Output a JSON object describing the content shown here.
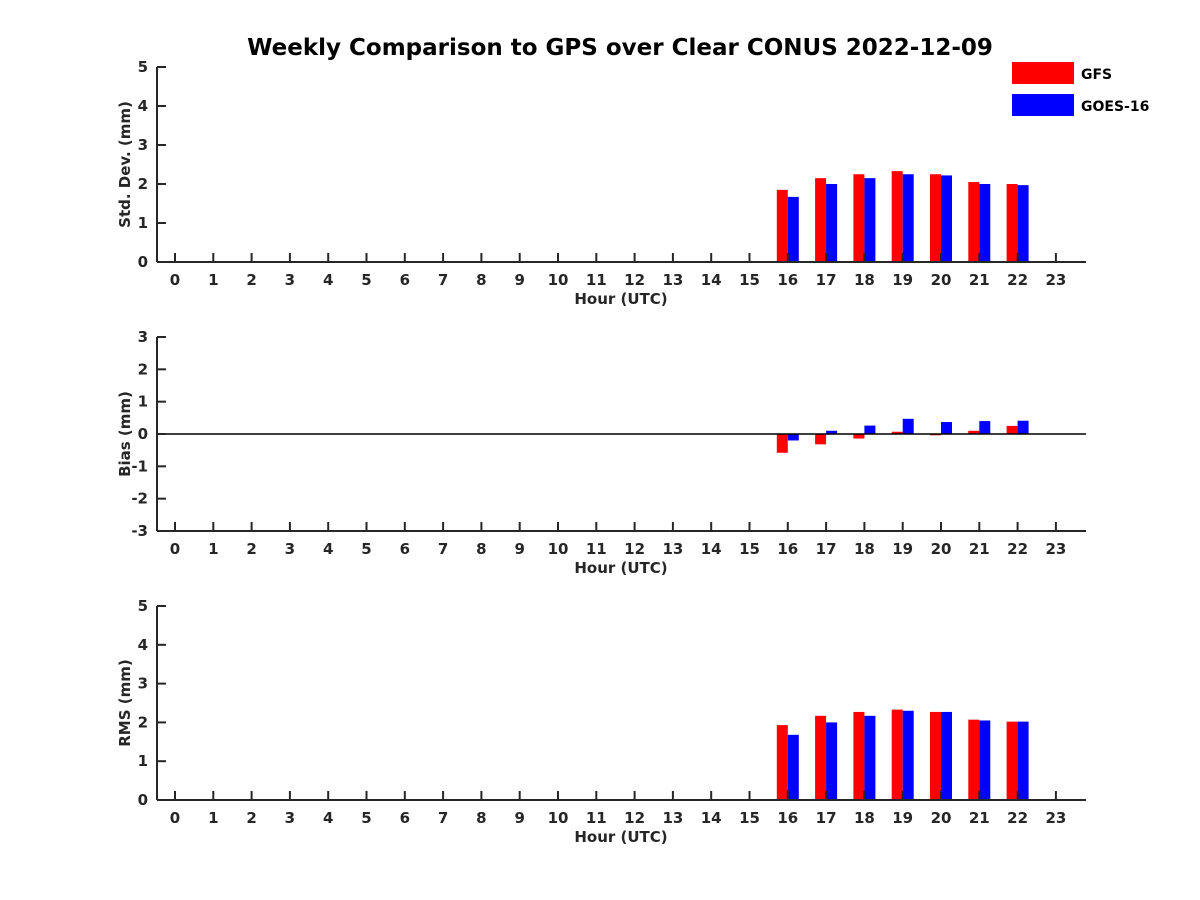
{
  "chart_data": [
    {
      "type": "bar",
      "title": "Weekly Comparison to GPS over Clear CONUS 2022-12-09",
      "xlabel": "Hour (UTC)",
      "ylabel": "Std. Dev. (mm)",
      "categories": [
        "0",
        "1",
        "2",
        "3",
        "4",
        "5",
        "6",
        "7",
        "8",
        "9",
        "10",
        "11",
        "12",
        "13",
        "14",
        "15",
        "16",
        "17",
        "18",
        "19",
        "20",
        "21",
        "22",
        "23"
      ],
      "ylim": [
        0,
        5
      ],
      "yticks": [
        0,
        1,
        2,
        3,
        4,
        5
      ],
      "series": [
        {
          "name": "GFS",
          "color": "#ff0000",
          "values": [
            null,
            null,
            null,
            null,
            null,
            null,
            null,
            null,
            null,
            null,
            null,
            null,
            null,
            null,
            null,
            null,
            1.85,
            2.15,
            2.25,
            2.33,
            2.25,
            2.05,
            2.0,
            null
          ]
        },
        {
          "name": "GOES-16",
          "color": "#0000ff",
          "values": [
            null,
            null,
            null,
            null,
            null,
            null,
            null,
            null,
            null,
            null,
            null,
            null,
            null,
            null,
            null,
            null,
            1.67,
            2.0,
            2.15,
            2.25,
            2.22,
            2.0,
            1.97,
            null
          ]
        }
      ],
      "legend": "top-right",
      "grid": false
    },
    {
      "type": "bar",
      "xlabel": "Hour (UTC)",
      "ylabel": "Bias (mm)",
      "categories": [
        "0",
        "1",
        "2",
        "3",
        "4",
        "5",
        "6",
        "7",
        "8",
        "9",
        "10",
        "11",
        "12",
        "13",
        "14",
        "15",
        "16",
        "17",
        "18",
        "19",
        "20",
        "21",
        "22",
        "23"
      ],
      "ylim": [
        -3,
        3
      ],
      "yticks": [
        -3,
        -2,
        -1,
        0,
        1,
        2,
        3
      ],
      "zero_line": true,
      "series": [
        {
          "name": "GFS",
          "color": "#ff0000",
          "values": [
            null,
            null,
            null,
            null,
            null,
            null,
            null,
            null,
            null,
            null,
            null,
            null,
            null,
            null,
            null,
            null,
            -0.58,
            -0.32,
            -0.14,
            0.07,
            -0.04,
            0.1,
            0.25,
            null
          ]
        },
        {
          "name": "GOES-16",
          "color": "#0000ff",
          "values": [
            null,
            null,
            null,
            null,
            null,
            null,
            null,
            null,
            null,
            null,
            null,
            null,
            null,
            null,
            null,
            null,
            -0.2,
            0.1,
            0.26,
            0.47,
            0.37,
            0.4,
            0.41,
            null
          ]
        }
      ],
      "grid": false
    },
    {
      "type": "bar",
      "xlabel": "Hour (UTC)",
      "ylabel": "RMS (mm)",
      "categories": [
        "0",
        "1",
        "2",
        "3",
        "4",
        "5",
        "6",
        "7",
        "8",
        "9",
        "10",
        "11",
        "12",
        "13",
        "14",
        "15",
        "16",
        "17",
        "18",
        "19",
        "20",
        "21",
        "22",
        "23"
      ],
      "ylim": [
        0,
        5
      ],
      "yticks": [
        0,
        1,
        2,
        3,
        4,
        5
      ],
      "series": [
        {
          "name": "GFS",
          "color": "#ff0000",
          "values": [
            null,
            null,
            null,
            null,
            null,
            null,
            null,
            null,
            null,
            null,
            null,
            null,
            null,
            null,
            null,
            null,
            1.93,
            2.17,
            2.27,
            2.33,
            2.27,
            2.07,
            2.02,
            null
          ]
        },
        {
          "name": "GOES-16",
          "color": "#0000ff",
          "values": [
            null,
            null,
            null,
            null,
            null,
            null,
            null,
            null,
            null,
            null,
            null,
            null,
            null,
            null,
            null,
            null,
            1.68,
            2.0,
            2.17,
            2.3,
            2.27,
            2.05,
            2.02,
            null
          ]
        }
      ],
      "grid": false
    }
  ]
}
